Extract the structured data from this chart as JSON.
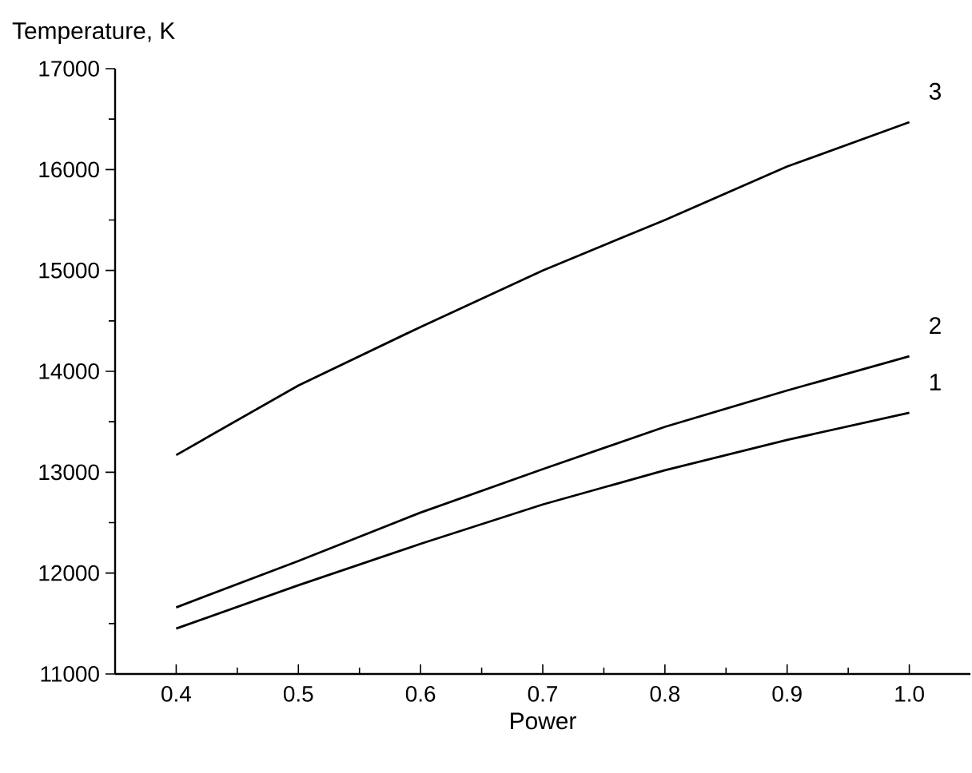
{
  "chart_data": {
    "type": "line",
    "xlabel": "Power",
    "ylabel": "Temperature, K",
    "x": [
      0.4,
      0.5,
      0.6,
      0.7,
      0.8,
      0.9,
      1.0
    ],
    "series": [
      {
        "name": "1",
        "color": "#000000",
        "values": [
          11450,
          11880,
          12290,
          12680,
          13020,
          13320,
          13590
        ]
      },
      {
        "name": "2",
        "color": "#000000",
        "values": [
          11660,
          12120,
          12600,
          13030,
          13450,
          13810,
          14150
        ]
      },
      {
        "name": "3",
        "color": "#000000",
        "values": [
          13170,
          13860,
          14440,
          15000,
          15500,
          16030,
          16470
        ]
      }
    ],
    "xlim": [
      0.35,
      1.05
    ],
    "ylim": [
      11000,
      17000
    ],
    "xticks": [
      {
        "value": 0.4,
        "label": "0.4"
      },
      {
        "value": 0.5,
        "label": "0.5"
      },
      {
        "value": 0.6,
        "label": "0.6"
      },
      {
        "value": 0.7,
        "label": "0.7"
      },
      {
        "value": 0.8,
        "label": "0.8"
      },
      {
        "value": 0.9,
        "label": "0.9"
      },
      {
        "value": 1.0,
        "label": "1.0"
      }
    ],
    "yticks": [
      11000,
      12000,
      13000,
      14000,
      15000,
      16000,
      17000
    ],
    "grid": false,
    "legend": false,
    "marker": "none",
    "line_style": "solid"
  }
}
